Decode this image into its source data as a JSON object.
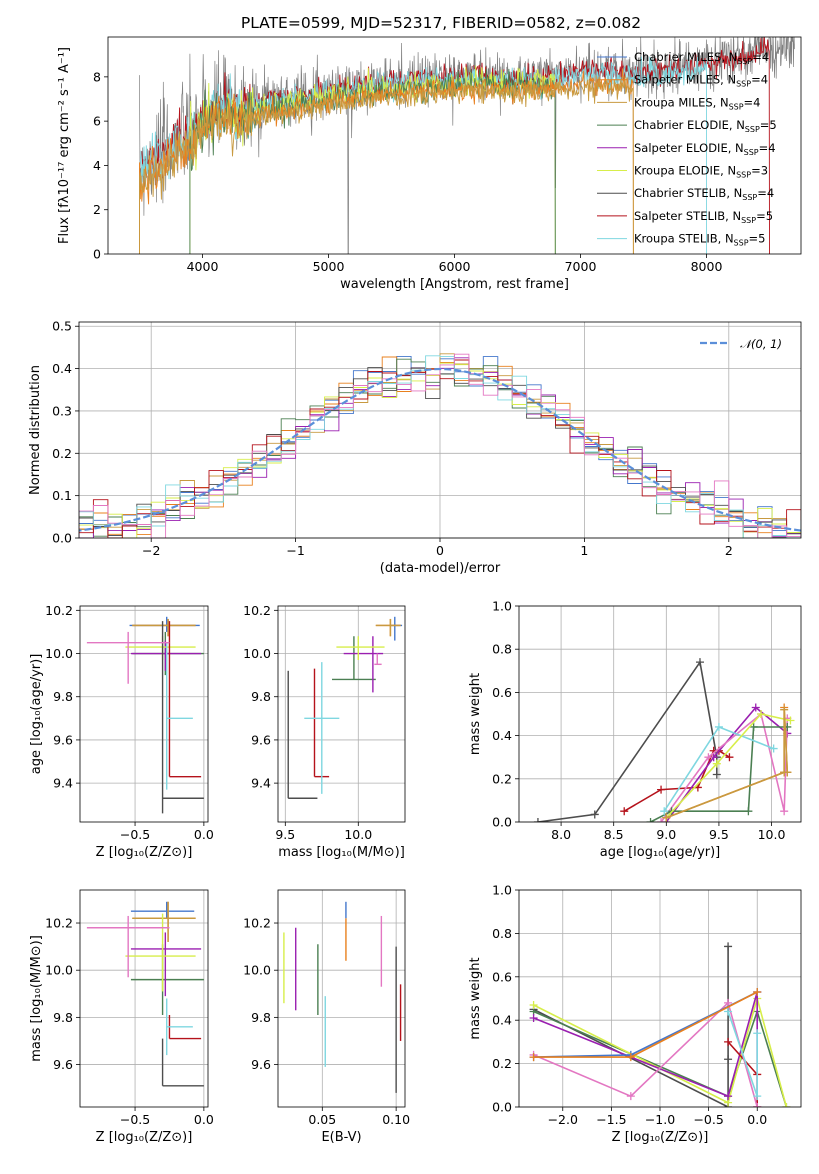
{
  "title": "PLATE=0599, MJD=52317, FIBERID=0582, z=0.082",
  "colors": {
    "Chabrier MILES": "#4477cc",
    "Salpeter MILES": "#e8801e",
    "Kroupa MILES": "#c89a40",
    "Chabrier ELODIE": "#4b7f52",
    "Salpeter ELODIE": "#9a1fb0",
    "Kroupa ELODIE": "#d7ee4a",
    "Chabrier STELIB": "#4d4d4d",
    "Salpeter STELIB": "#b5121b",
    "Kroupa STELIB": "#7fd7e0",
    "pink": "#e377c2",
    "normal": "#5b8fd9"
  },
  "legend_spectrum": [
    {
      "imf": "Chabrier MILES",
      "n": "4"
    },
    {
      "imf": "Salpeter MILES",
      "n": "4"
    },
    {
      "imf": "Kroupa MILES",
      "n": "4"
    },
    {
      "imf": "Chabrier ELODIE",
      "n": "5"
    },
    {
      "imf": "Salpeter ELODIE",
      "n": "4"
    },
    {
      "imf": "Kroupa ELODIE",
      "n": "3"
    },
    {
      "imf": "Chabrier STELIB",
      "n": "4"
    },
    {
      "imf": "Salpeter STELIB",
      "n": "5"
    },
    {
      "imf": "Kroupa STELIB",
      "n": "5"
    }
  ],
  "legend_nsym": "N",
  "legend_nsub": "SSP",
  "legend_normal": "𝒩(0, 1)",
  "chart_data": [
    {
      "id": "spectrum",
      "type": "line",
      "xlabel": "wavelength [Angstrom, rest frame]",
      "ylabel": "Flux [fλ10⁻¹⁷ erg cm⁻² s⁻¹ A⁻¹]",
      "xlim": [
        3250,
        8750
      ],
      "ylim": [
        0,
        9.8
      ],
      "xticks": [
        4000,
        5000,
        6000,
        7000,
        8000
      ],
      "yticks": [
        0,
        2,
        4,
        6,
        8
      ],
      "data_x": [
        3500,
        3600,
        3700,
        3800,
        3900,
        4000,
        4100,
        4200,
        4300,
        4500,
        4700,
        5000,
        5300,
        5600,
        5900,
        6200,
        6500,
        6800,
        7100,
        7400,
        7700,
        8000,
        8300,
        8500
      ],
      "data_y": [
        3.8,
        4.3,
        4.6,
        5.3,
        5.4,
        6.3,
        6.6,
        6.8,
        6.4,
        7.0,
        7.1,
        7.4,
        7.7,
        7.8,
        8.0,
        8.1,
        7.9,
        8.1,
        8.3,
        8.2,
        8.3,
        8.6,
        8.9,
        9.4
      ]
    },
    {
      "id": "residuals",
      "type": "line",
      "xlabel": "(data-model)/error",
      "ylabel": "Normed distribution",
      "xlim": [
        -2.5,
        2.5
      ],
      "ylim": [
        0,
        0.51
      ],
      "xticks": [
        -2,
        -1,
        0,
        1,
        2
      ],
      "yticks": [
        0.0,
        0.1,
        0.2,
        0.3,
        0.4,
        0.5
      ],
      "normal": {
        "mu": 0,
        "sigma": 1
      }
    },
    {
      "id": "age-vs-Z",
      "type": "scatter",
      "xlabel": "Z [log₁₀(Z/Z⊙)]",
      "ylabel": "age  [log₁₀(age/yr)]",
      "xlim": [
        -0.9,
        0.03
      ],
      "ylim": [
        9.22,
        10.22
      ],
      "xticks": [
        -0.5,
        0.0
      ],
      "xticklabels": [
        "−0.5",
        "0.0"
      ],
      "yticks": [
        9.4,
        9.6,
        9.8,
        10.0,
        10.2
      ],
      "points": [
        {
          "s": "Chabrier MILES",
          "x": -0.27,
          "xe": [
            0.27,
            0.24
          ],
          "y": 10.13,
          "ye": [
            0.03,
            0.04
          ]
        },
        {
          "s": "Salpeter MILES",
          "x": -0.26,
          "xe": [
            0.26,
            0.2
          ],
          "y": 10.13,
          "ye": [
            0.05,
            0.03
          ]
        },
        {
          "s": "Kroupa MILES",
          "x": -0.26,
          "xe": [
            0.26,
            0.2
          ],
          "y": 10.13,
          "ye": [
            0.05,
            0.03
          ]
        },
        {
          "s": "Chabrier ELODIE",
          "x": -0.28,
          "xe": [
            0.24,
            0.28
          ],
          "y": 10.0,
          "ye": [
            0.1,
            0.1
          ]
        },
        {
          "s": "Salpeter ELODIE",
          "x": -0.28,
          "xe": [
            0.25,
            0.26
          ],
          "y": 10.0,
          "ye": [
            0.08,
            0.06
          ]
        },
        {
          "s": "Kroupa ELODIE",
          "x": -0.3,
          "xe": [
            0.27,
            0.24
          ],
          "y": 10.03,
          "ye": [
            0.06,
            0.05
          ]
        },
        {
          "s": "Chabrier STELIB",
          "x": -0.3,
          "xe": [
            0.0,
            0.3
          ],
          "y": 9.33,
          "ye": [
            0.07,
            0.82
          ]
        },
        {
          "s": "Salpeter STELIB",
          "x": -0.25,
          "xe": [
            0.0,
            0.23
          ],
          "y": 9.43,
          "ye": [
            0.0,
            0.72
          ]
        },
        {
          "s": "Kroupa STELIB",
          "x": -0.27,
          "xe": [
            0.0,
            0.19
          ],
          "y": 9.7,
          "ye": [
            0.33,
            0.35
          ]
        },
        {
          "s": "pink",
          "x": -0.55,
          "xe": [
            0.3,
            0.3
          ],
          "y": 10.05,
          "ye": [
            0.19,
            0.05
          ]
        }
      ]
    },
    {
      "id": "age-vs-mass",
      "type": "scatter",
      "xlabel": "mass [log₁₀(M/M⊙)]",
      "ylabel": "",
      "xlim": [
        9.45,
        10.32
      ],
      "ylim": [
        9.22,
        10.22
      ],
      "xticks": [
        9.5,
        10.0
      ],
      "yticks": [
        9.4,
        9.6,
        9.8,
        10.0,
        10.2
      ],
      "points": [
        {
          "s": "Chabrier MILES",
          "x": 10.25,
          "xe": [
            0.03,
            0.05
          ],
          "y": 10.13,
          "ye": [
            0.07,
            0.04
          ]
        },
        {
          "s": "Salpeter MILES",
          "x": 10.22,
          "xe": [
            0.1,
            0.07
          ],
          "y": 10.13,
          "ye": [
            0.05,
            0.03
          ]
        },
        {
          "s": "Kroupa MILES",
          "x": 10.22,
          "xe": [
            0.1,
            0.07
          ],
          "y": 10.13,
          "ye": [
            0.05,
            0.03
          ]
        },
        {
          "s": "Chabrier ELODIE",
          "x": 9.97,
          "xe": [
            0.15,
            0.15
          ],
          "y": 9.88,
          "ye": [
            0.0,
            0.2
          ]
        },
        {
          "s": "Salpeter ELODIE",
          "x": 10.1,
          "xe": [
            0.2,
            0.07
          ],
          "y": 10.0,
          "ye": [
            0.18,
            0.08
          ]
        },
        {
          "s": "Kroupa ELODIE",
          "x": 10.0,
          "xe": [
            0.15,
            0.18
          ],
          "y": 10.03,
          "ye": [
            0.06,
            0.05
          ]
        },
        {
          "s": "Chabrier STELIB",
          "x": 9.52,
          "xe": [
            0.0,
            0.2
          ],
          "y": 9.33,
          "ye": [
            0.0,
            0.59
          ]
        },
        {
          "s": "Salpeter STELIB",
          "x": 9.7,
          "xe": [
            0.0,
            0.1
          ],
          "y": 9.43,
          "ye": [
            0.0,
            0.5
          ]
        },
        {
          "s": "Kroupa STELIB",
          "x": 9.75,
          "xe": [
            0.12,
            0.12
          ],
          "y": 9.7,
          "ye": [
            0.35,
            0.26
          ]
        },
        {
          "s": "pink",
          "x": 10.13,
          "xe": [
            0.02,
            0.03
          ],
          "y": 9.95,
          "ye": [
            0.0,
            0.05
          ]
        }
      ]
    },
    {
      "id": "weight-vs-age",
      "type": "line",
      "xlabel": "age  [log₁₀(age/yr)]",
      "ylabel": "mass weight",
      "xlim": [
        7.6,
        10.28
      ],
      "ylim": [
        0,
        1.0
      ],
      "xticks": [
        8.0,
        8.5,
        9.0,
        9.5,
        10.0
      ],
      "yticks": [
        0.0,
        0.2,
        0.4,
        0.6,
        0.8,
        1.0
      ],
      "series": [
        {
          "s": "Chabrier STELIB",
          "x": [
            7.78,
            8.32,
            9.32,
            9.48,
            9.48
          ],
          "y": [
            0.0,
            0.035,
            0.74,
            0.3,
            0.22
          ]
        },
        {
          "s": "Salpeter STELIB",
          "x": [
            8.6,
            8.95,
            9.3,
            9.45,
            9.5,
            9.6
          ],
          "y": [
            0.05,
            0.15,
            0.16,
            0.33,
            0.33,
            0.3
          ]
        },
        {
          "s": "Salpeter ELODIE",
          "x": [
            9.0,
            9.45,
            9.85,
            10.15
          ],
          "y": [
            0.0,
            0.3,
            0.53,
            0.41
          ]
        },
        {
          "s": "pink",
          "x": [
            8.95,
            9.4,
            9.9,
            10.12,
            10.15
          ],
          "y": [
            0.0,
            0.3,
            0.5,
            0.05,
            0.48
          ]
        },
        {
          "s": "Chabrier ELODIE",
          "x": [
            8.85,
            9.05,
            9.78,
            9.83,
            10.15
          ],
          "y": [
            0.0,
            0.05,
            0.05,
            0.44,
            0.44
          ]
        },
        {
          "s": "Kroupa STELIB",
          "x": [
            8.98,
            9.5,
            10.02
          ],
          "y": [
            0.05,
            0.44,
            0.34
          ]
        },
        {
          "s": "Kroupa ELODIE",
          "x": [
            9.0,
            9.48,
            9.9,
            10.18
          ],
          "y": [
            0.02,
            0.27,
            0.5,
            0.47
          ]
        },
        {
          "s": "Salpeter MILES",
          "x": [
            9.0,
            10.12,
            10.12,
            10.15
          ],
          "y": [
            0.02,
            0.23,
            0.53,
            0.23
          ]
        },
        {
          "s": "Kroupa MILES",
          "x": [
            9.0,
            10.12,
            10.12,
            10.15
          ],
          "y": [
            0.02,
            0.23,
            0.52,
            0.23
          ]
        }
      ]
    },
    {
      "id": "mass-vs-Z",
      "type": "scatter",
      "xlabel": "Z [log₁₀(Z/Z⊙)]",
      "ylabel": "mass [log₁₀(M/M⊙)]",
      "xlim": [
        -0.9,
        0.03
      ],
      "ylim": [
        9.42,
        10.34
      ],
      "xticks": [
        -0.5,
        0.0
      ],
      "xticklabels": [
        "−0.5",
        "0.0"
      ],
      "yticks": [
        9.6,
        9.8,
        10.0,
        10.2
      ],
      "points": [
        {
          "s": "Chabrier MILES",
          "x": -0.27,
          "xe": [
            0.26,
            0.2
          ],
          "y": 10.25,
          "ye": [
            0.03,
            0.04
          ]
        },
        {
          "s": "Salpeter MILES",
          "x": -0.26,
          "xe": [
            0.26,
            0.2
          ],
          "y": 10.22,
          "ye": [
            0.1,
            0.07
          ]
        },
        {
          "s": "Kroupa MILES",
          "x": -0.26,
          "xe": [
            0.26,
            0.2
          ],
          "y": 10.22,
          "ye": [
            0.1,
            0.07
          ]
        },
        {
          "s": "Chabrier ELODIE",
          "x": -0.3,
          "xe": [
            0.23,
            0.3
          ],
          "y": 9.96,
          "ye": [
            0.15,
            0.15
          ]
        },
        {
          "s": "Salpeter ELODIE",
          "x": -0.28,
          "xe": [
            0.25,
            0.26
          ],
          "y": 10.09,
          "ye": [
            0.2,
            0.07
          ]
        },
        {
          "s": "Kroupa ELODIE",
          "x": -0.3,
          "xe": [
            0.27,
            0.24
          ],
          "y": 10.06,
          "ye": [
            0.15,
            0.18
          ]
        },
        {
          "s": "Chabrier STELIB",
          "x": -0.3,
          "xe": [
            0.0,
            0.3
          ],
          "y": 9.51,
          "ye": [
            0.0,
            0.2
          ]
        },
        {
          "s": "Salpeter STELIB",
          "x": -0.25,
          "xe": [
            0.0,
            0.23
          ],
          "y": 9.71,
          "ye": [
            0.0,
            0.1
          ]
        },
        {
          "s": "Kroupa STELIB",
          "x": -0.27,
          "xe": [
            0.0,
            0.19
          ],
          "y": 9.76,
          "ye": [
            0.12,
            0.12
          ]
        },
        {
          "s": "pink",
          "x": -0.55,
          "xe": [
            0.3,
            0.3
          ],
          "y": 10.18,
          "ye": [
            0.21,
            0.05
          ]
        }
      ]
    },
    {
      "id": "mass-vs-ebv",
      "type": "scatter",
      "xlabel": "E(B-V)",
      "ylabel": "",
      "xlim": [
        0.02,
        0.106
      ],
      "ylim": [
        9.42,
        10.34
      ],
      "xticks": [
        0.05,
        0.1
      ],
      "yticks": [
        9.6,
        9.8,
        10.0,
        10.2
      ],
      "points": [
        {
          "s": "Chabrier MILES",
          "x": 0.066,
          "y": 10.25,
          "ye": [
            0.03,
            0.04
          ]
        },
        {
          "s": "Salpeter MILES",
          "x": 0.066,
          "y": 10.17,
          "ye": [
            0.13,
            0.05
          ]
        },
        {
          "s": "Kroupa ELODIE",
          "x": 0.024,
          "y": 10.06,
          "ye": [
            0.2,
            0.1
          ]
        },
        {
          "s": "Salpeter ELODIE",
          "x": 0.032,
          "y": 10.06,
          "ye": [
            0.23,
            0.12
          ]
        },
        {
          "s": "Chabrier ELODIE",
          "x": 0.047,
          "y": 9.96,
          "ye": [
            0.15,
            0.15
          ]
        },
        {
          "s": "Kroupa STELIB",
          "x": 0.052,
          "y": 9.76,
          "ye": [
            0.17,
            0.13
          ]
        },
        {
          "s": "pink",
          "x": 0.09,
          "y": 10.08,
          "ye": [
            0.15,
            0.15
          ]
        },
        {
          "s": "Chabrier STELIB",
          "x": 0.1,
          "y": 9.51,
          "ye": [
            0.03,
            0.59
          ]
        },
        {
          "s": "Salpeter STELIB",
          "x": 0.103,
          "y": 9.82,
          "ye": [
            0.12,
            0.12
          ]
        }
      ]
    },
    {
      "id": "weight-vs-Z",
      "type": "line",
      "xlabel": "Z [log₁₀(Z/Z⊙)]",
      "ylabel": "mass weight",
      "xlim": [
        -2.45,
        0.45
      ],
      "ylim": [
        0,
        1.0
      ],
      "xticks": [
        -2.0,
        -1.5,
        -1.0,
        -0.5,
        0.0
      ],
      "xticklabels": [
        "−2.0",
        "−1.5",
        "−1.0",
        "−0.5",
        "0.0"
      ],
      "yticks": [
        0.0,
        0.2,
        0.4,
        0.6,
        0.8,
        1.0
      ],
      "series": [
        {
          "s": "Chabrier STELIB",
          "x": [
            -2.3,
            -0.3,
            -0.3,
            -0.3
          ],
          "y": [
            0.45,
            0.0,
            0.74,
            0.22
          ]
        },
        {
          "s": "Chabrier ELODIE",
          "x": [
            -2.3,
            -0.3,
            0.0,
            0.3
          ],
          "y": [
            0.44,
            0.05,
            0.44,
            0.0
          ]
        },
        {
          "s": "Kroupa ELODIE",
          "x": [
            -2.3,
            -0.3,
            0.0,
            0.3
          ],
          "y": [
            0.47,
            0.02,
            0.5,
            0.0
          ]
        },
        {
          "s": "Salpeter ELODIE",
          "x": [
            -2.3,
            -0.3,
            0.0,
            0.0
          ],
          "y": [
            0.41,
            0.05,
            0.53,
            0.0
          ]
        },
        {
          "s": "Salpeter STELIB",
          "x": [
            -0.3,
            0.0,
            0.0
          ],
          "y": [
            0.3,
            0.15,
            0.0
          ]
        },
        {
          "s": "pink",
          "x": [
            -2.3,
            -1.3,
            -0.3,
            0.0
          ],
          "y": [
            0.24,
            0.05,
            0.48,
            0.0
          ]
        },
        {
          "s": "Kroupa STELIB",
          "x": [
            -0.3,
            0.0,
            0.0
          ],
          "y": [
            0.44,
            0.05,
            0.34
          ]
        },
        {
          "s": "Chabrier MILES",
          "x": [
            -2.3,
            -1.3,
            0.0
          ],
          "y": [
            0.23,
            0.24,
            0.53
          ]
        },
        {
          "s": "Salpeter MILES",
          "x": [
            -2.3,
            -1.3,
            0.0
          ],
          "y": [
            0.23,
            0.23,
            0.53
          ]
        }
      ]
    }
  ]
}
